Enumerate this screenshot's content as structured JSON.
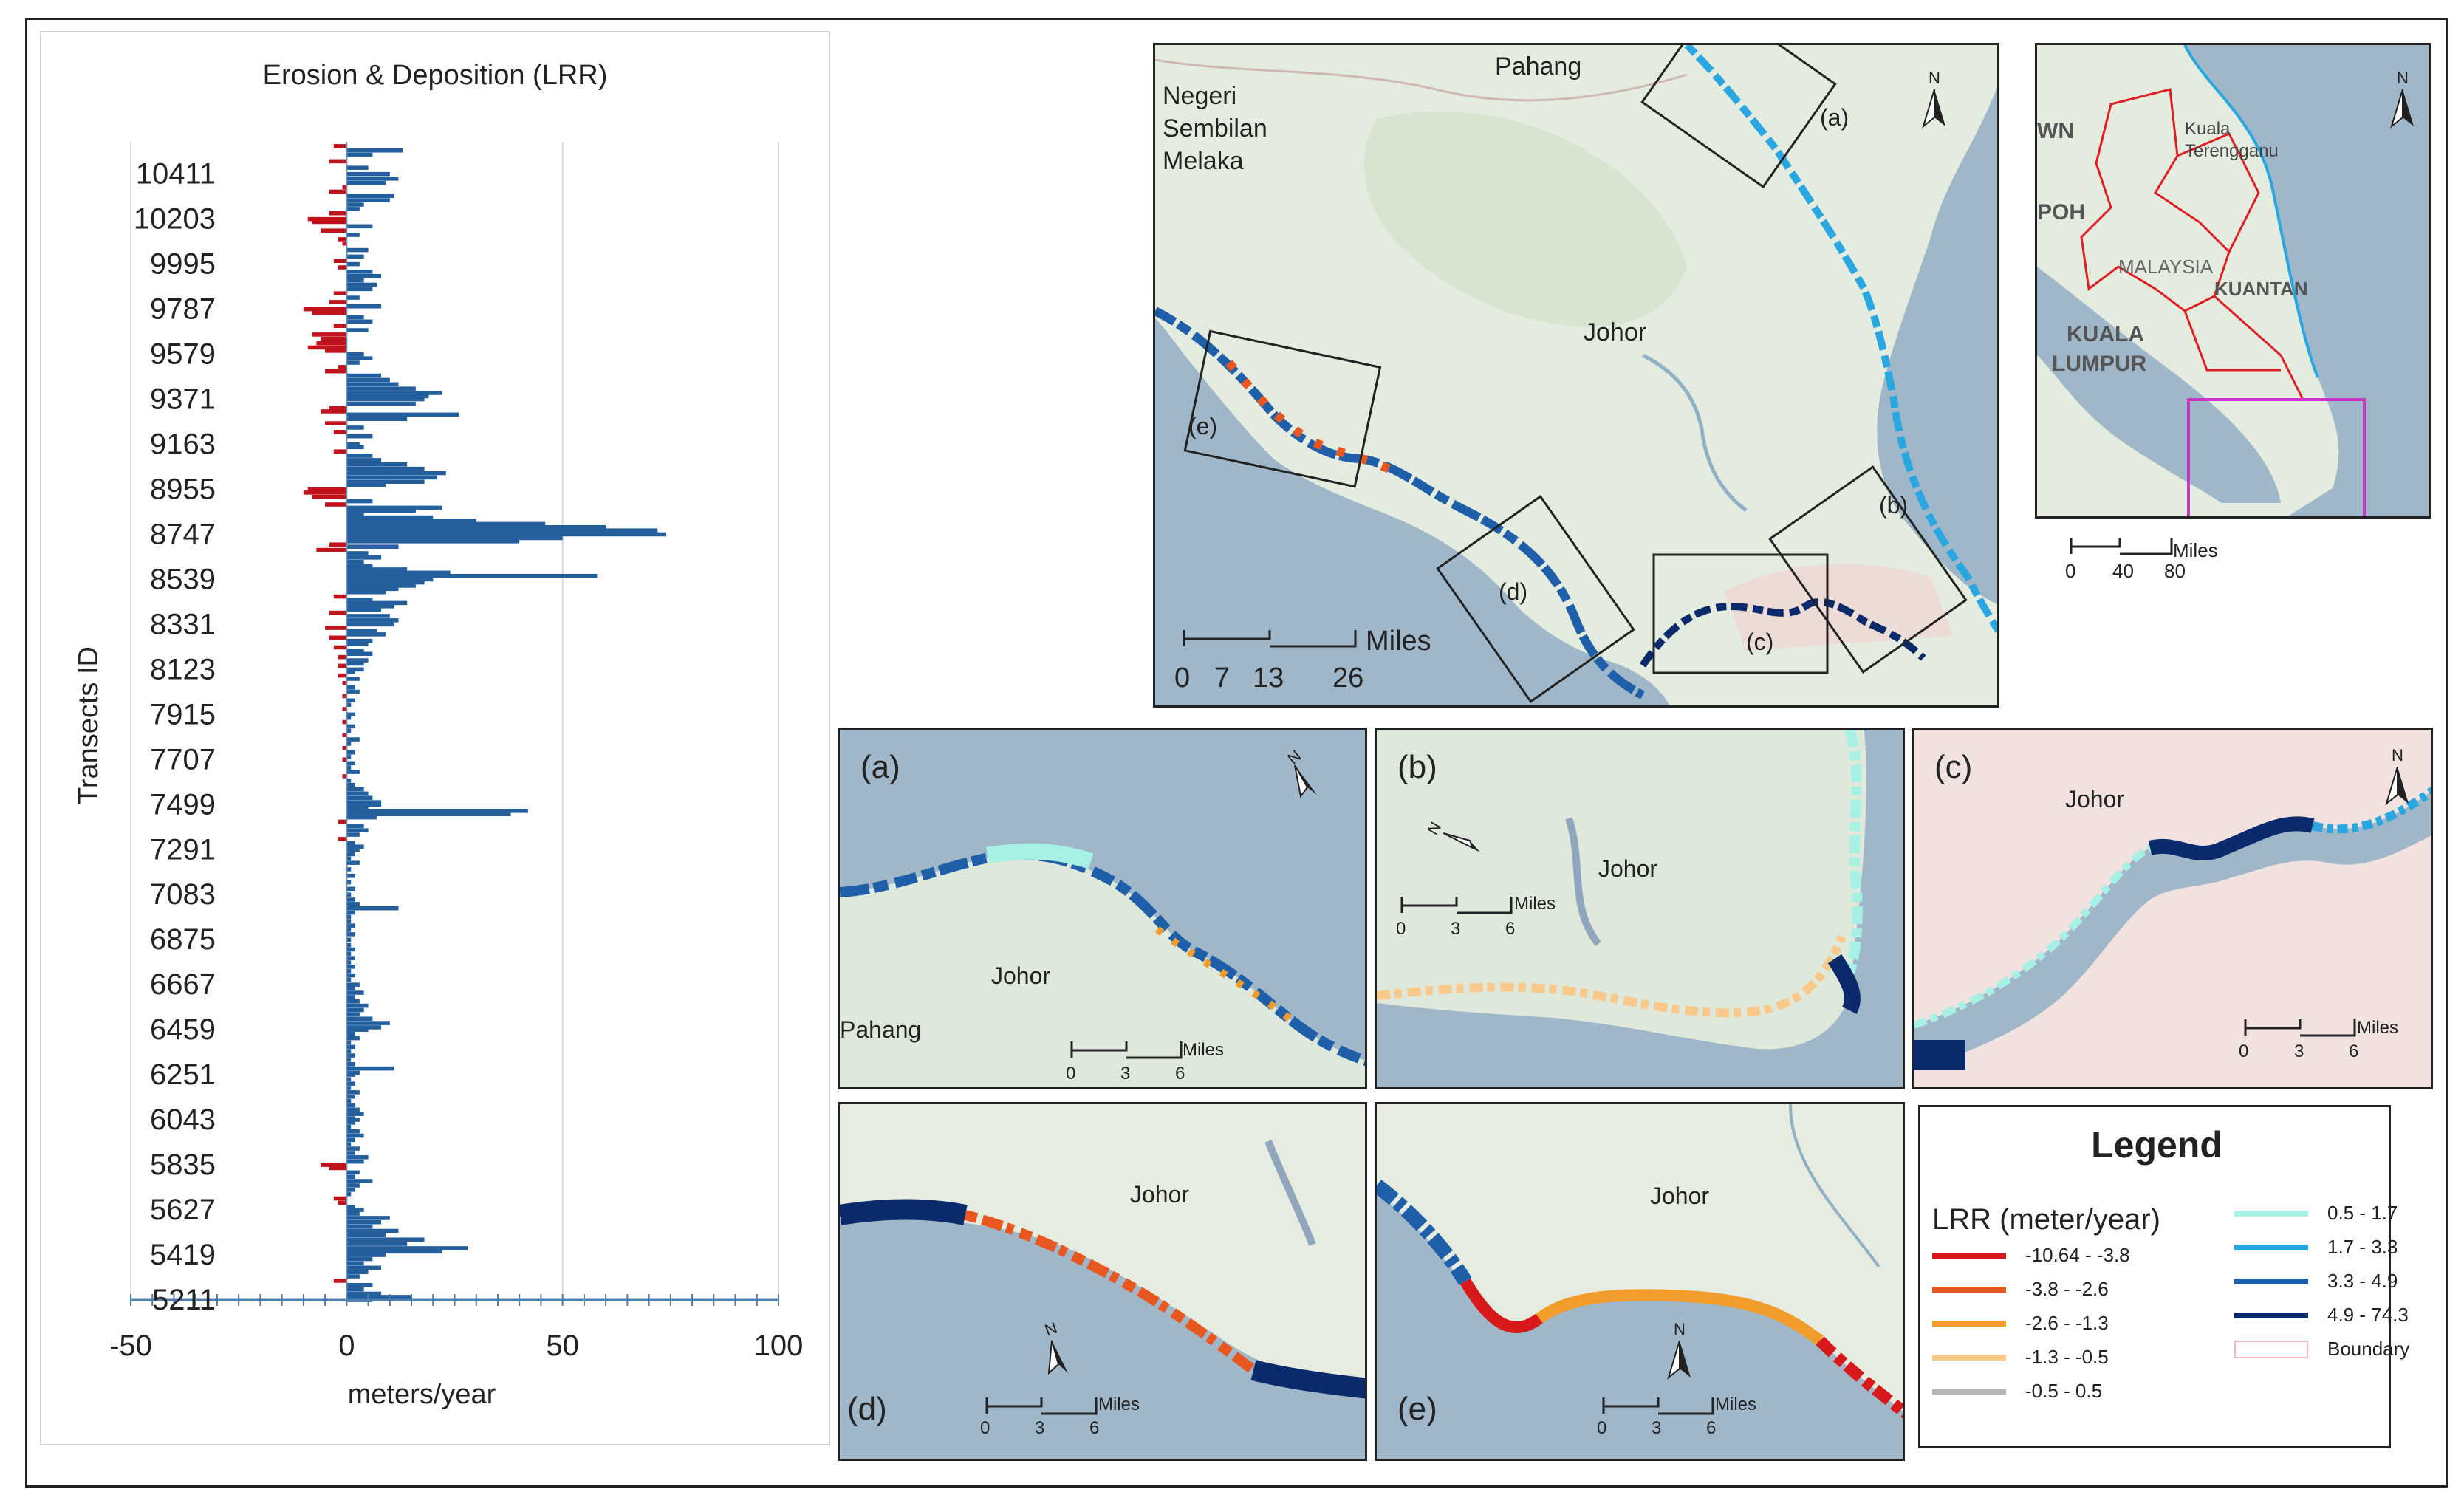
{
  "colors": {
    "erosion": "#c0131c",
    "deposition": "#245f9d",
    "sea": "#9fb7c8",
    "land": "#e3ecdf",
    "frame": "#222222",
    "boundary": "#f3b9bd"
  },
  "chart_data": {
    "type": "bar",
    "orientation": "horizontal",
    "title": "Erosion & Deposition (LRR)",
    "xlabel": "meters/year",
    "ylabel": "Transects ID",
    "xlim": [
      -50,
      100
    ],
    "x_ticks": [
      -50,
      0,
      50,
      100
    ],
    "y_ticks": [
      10411,
      10203,
      9995,
      9787,
      9579,
      9371,
      9163,
      8955,
      8747,
      8539,
      8331,
      8123,
      7915,
      7707,
      7499,
      7291,
      7083,
      6875,
      6667,
      6459,
      6251,
      6043,
      5835,
      5627,
      5419,
      5211
    ],
    "grid": "vertical",
    "legend": "none",
    "series_note": "red bars = negative LRR (erosion), blue bars = positive LRR (deposition)",
    "ymin": 5211,
    "ymax": 10560,
    "values": [
      [
        10540,
        -3
      ],
      [
        10520,
        13
      ],
      [
        10500,
        6
      ],
      [
        10470,
        -4
      ],
      [
        10440,
        5
      ],
      [
        10411,
        10
      ],
      [
        10390,
        12
      ],
      [
        10370,
        9
      ],
      [
        10350,
        -1
      ],
      [
        10330,
        -4
      ],
      [
        10310,
        11
      ],
      [
        10290,
        10
      ],
      [
        10270,
        4
      ],
      [
        10250,
        3
      ],
      [
        10230,
        -4
      ],
      [
        10203,
        -9
      ],
      [
        10190,
        -8
      ],
      [
        10170,
        6
      ],
      [
        10150,
        -6
      ],
      [
        10130,
        3
      ],
      [
        10110,
        -2
      ],
      [
        10090,
        -1
      ],
      [
        10060,
        5
      ],
      [
        10030,
        4
      ],
      [
        10010,
        -3
      ],
      [
        9995,
        3
      ],
      [
        9980,
        -2
      ],
      [
        9960,
        6
      ],
      [
        9940,
        8
      ],
      [
        9920,
        4
      ],
      [
        9900,
        7
      ],
      [
        9880,
        6
      ],
      [
        9860,
        -3
      ],
      [
        9840,
        3
      ],
      [
        9820,
        -4
      ],
      [
        9800,
        8
      ],
      [
        9787,
        -10
      ],
      [
        9770,
        -8
      ],
      [
        9750,
        4
      ],
      [
        9730,
        6
      ],
      [
        9710,
        -3
      ],
      [
        9690,
        5
      ],
      [
        9670,
        -8
      ],
      [
        9650,
        -6
      ],
      [
        9630,
        -7
      ],
      [
        9610,
        -9
      ],
      [
        9595,
        -5
      ],
      [
        9579,
        4
      ],
      [
        9560,
        6
      ],
      [
        9540,
        3
      ],
      [
        9520,
        -2
      ],
      [
        9500,
        -5
      ],
      [
        9480,
        8
      ],
      [
        9460,
        10
      ],
      [
        9440,
        12
      ],
      [
        9420,
        16
      ],
      [
        9400,
        22
      ],
      [
        9385,
        19
      ],
      [
        9371,
        18
      ],
      [
        9350,
        16
      ],
      [
        9330,
        -4
      ],
      [
        9315,
        -6
      ],
      [
        9300,
        26
      ],
      [
        9280,
        14
      ],
      [
        9260,
        -5
      ],
      [
        9240,
        4
      ],
      [
        9220,
        -3
      ],
      [
        9200,
        6
      ],
      [
        9163,
        3
      ],
      [
        9150,
        4
      ],
      [
        9130,
        -3
      ],
      [
        9110,
        6
      ],
      [
        9090,
        8
      ],
      [
        9070,
        14
      ],
      [
        9050,
        18
      ],
      [
        9030,
        23
      ],
      [
        9010,
        21
      ],
      [
        8990,
        18
      ],
      [
        8975,
        9
      ],
      [
        8955,
        -9
      ],
      [
        8940,
        -10
      ],
      [
        8920,
        -8
      ],
      [
        8900,
        6
      ],
      [
        8885,
        -5
      ],
      [
        8870,
        22
      ],
      [
        8855,
        16
      ],
      [
        8840,
        4
      ],
      [
        8825,
        20
      ],
      [
        8810,
        30
      ],
      [
        8795,
        46
      ],
      [
        8780,
        60
      ],
      [
        8765,
        72
      ],
      [
        8747,
        74
      ],
      [
        8730,
        50
      ],
      [
        8715,
        40
      ],
      [
        8700,
        -4
      ],
      [
        8690,
        12
      ],
      [
        8675,
        -7
      ],
      [
        8660,
        5
      ],
      [
        8640,
        8
      ],
      [
        8620,
        4
      ],
      [
        8600,
        6
      ],
      [
        8585,
        14
      ],
      [
        8570,
        24
      ],
      [
        8555,
        58
      ],
      [
        8539,
        20
      ],
      [
        8525,
        18
      ],
      [
        8510,
        16
      ],
      [
        8495,
        12
      ],
      [
        8480,
        9
      ],
      [
        8460,
        -3
      ],
      [
        8445,
        6
      ],
      [
        8430,
        14
      ],
      [
        8415,
        11
      ],
      [
        8400,
        8
      ],
      [
        8385,
        -4
      ],
      [
        8370,
        10
      ],
      [
        8350,
        12
      ],
      [
        8331,
        11
      ],
      [
        8315,
        -5
      ],
      [
        8300,
        7
      ],
      [
        8285,
        9
      ],
      [
        8270,
        -4
      ],
      [
        8255,
        6
      ],
      [
        8240,
        5
      ],
      [
        8225,
        -3
      ],
      [
        8210,
        4
      ],
      [
        8195,
        6
      ],
      [
        8180,
        -2
      ],
      [
        8165,
        5
      ],
      [
        8150,
        4
      ],
      [
        8140,
        -2
      ],
      [
        8123,
        4
      ],
      [
        8110,
        2
      ],
      [
        8095,
        -2
      ],
      [
        8080,
        3
      ],
      [
        8060,
        -1
      ],
      [
        8040,
        2
      ],
      [
        8020,
        3
      ],
      [
        8000,
        -1
      ],
      [
        7980,
        2
      ],
      [
        7960,
        1
      ],
      [
        7940,
        -1
      ],
      [
        7915,
        2
      ],
      [
        7900,
        1
      ],
      [
        7880,
        -1
      ],
      [
        7860,
        2
      ],
      [
        7840,
        1
      ],
      [
        7820,
        -1
      ],
      [
        7800,
        3
      ],
      [
        7780,
        1
      ],
      [
        7760,
        -1
      ],
      [
        7740,
        2
      ],
      [
        7720,
        1
      ],
      [
        7707,
        -1
      ],
      [
        7690,
        2
      ],
      [
        7670,
        1
      ],
      [
        7650,
        3
      ],
      [
        7630,
        -1
      ],
      [
        7610,
        1
      ],
      [
        7590,
        2
      ],
      [
        7570,
        4
      ],
      [
        7550,
        5
      ],
      [
        7530,
        6
      ],
      [
        7510,
        8
      ],
      [
        7499,
        8
      ],
      [
        7485,
        5
      ],
      [
        7470,
        42
      ],
      [
        7455,
        38
      ],
      [
        7440,
        7
      ],
      [
        7420,
        -2
      ],
      [
        7400,
        4
      ],
      [
        7380,
        5
      ],
      [
        7360,
        3
      ],
      [
        7340,
        -2
      ],
      [
        7320,
        2
      ],
      [
        7305,
        4
      ],
      [
        7291,
        3
      ],
      [
        7270,
        2
      ],
      [
        7250,
        1
      ],
      [
        7230,
        3
      ],
      [
        7200,
        1
      ],
      [
        7170,
        2
      ],
      [
        7140,
        1
      ],
      [
        7110,
        2
      ],
      [
        7083,
        1
      ],
      [
        7060,
        2
      ],
      [
        7040,
        3
      ],
      [
        7020,
        12
      ],
      [
        7000,
        2
      ],
      [
        6980,
        1
      ],
      [
        6960,
        1
      ],
      [
        6940,
        2
      ],
      [
        6920,
        1
      ],
      [
        6900,
        2
      ],
      [
        6875,
        1
      ],
      [
        6850,
        1
      ],
      [
        6830,
        2
      ],
      [
        6810,
        1
      ],
      [
        6790,
        2
      ],
      [
        6770,
        1
      ],
      [
        6750,
        2
      ],
      [
        6730,
        1
      ],
      [
        6710,
        2
      ],
      [
        6690,
        1
      ],
      [
        6667,
        3
      ],
      [
        6650,
        2
      ],
      [
        6630,
        4
      ],
      [
        6610,
        2
      ],
      [
        6590,
        3
      ],
      [
        6570,
        5
      ],
      [
        6550,
        4
      ],
      [
        6530,
        3
      ],
      [
        6510,
        6
      ],
      [
        6490,
        10
      ],
      [
        6470,
        8
      ],
      [
        6459,
        5
      ],
      [
        6440,
        2
      ],
      [
        6420,
        3
      ],
      [
        6400,
        1
      ],
      [
        6380,
        2
      ],
      [
        6360,
        1
      ],
      [
        6340,
        2
      ],
      [
        6320,
        1
      ],
      [
        6300,
        2
      ],
      [
        6280,
        11
      ],
      [
        6260,
        3
      ],
      [
        6251,
        2
      ],
      [
        6230,
        1
      ],
      [
        6210,
        2
      ],
      [
        6190,
        1
      ],
      [
        6170,
        3
      ],
      [
        6150,
        2
      ],
      [
        6130,
        1
      ],
      [
        6110,
        2
      ],
      [
        6090,
        3
      ],
      [
        6070,
        4
      ],
      [
        6050,
        2
      ],
      [
        6043,
        3
      ],
      [
        6030,
        2
      ],
      [
        6010,
        1
      ],
      [
        5990,
        3
      ],
      [
        5970,
        4
      ],
      [
        5950,
        2
      ],
      [
        5930,
        1
      ],
      [
        5910,
        3
      ],
      [
        5890,
        2
      ],
      [
        5870,
        5
      ],
      [
        5850,
        4
      ],
      [
        5835,
        -6
      ],
      [
        5820,
        -4
      ],
      [
        5800,
        3
      ],
      [
        5780,
        2
      ],
      [
        5760,
        6
      ],
      [
        5740,
        3
      ],
      [
        5720,
        2
      ],
      [
        5700,
        1
      ],
      [
        5680,
        -3
      ],
      [
        5660,
        -2
      ],
      [
        5640,
        2
      ],
      [
        5627,
        4
      ],
      [
        5610,
        3
      ],
      [
        5590,
        10
      ],
      [
        5570,
        8
      ],
      [
        5550,
        6
      ],
      [
        5530,
        12
      ],
      [
        5510,
        9
      ],
      [
        5490,
        18
      ],
      [
        5470,
        14
      ],
      [
        5450,
        28
      ],
      [
        5435,
        22
      ],
      [
        5419,
        9
      ],
      [
        5400,
        6
      ],
      [
        5380,
        4
      ],
      [
        5360,
        8
      ],
      [
        5340,
        5
      ],
      [
        5320,
        3
      ],
      [
        5300,
        -3
      ],
      [
        5280,
        6
      ],
      [
        5260,
        4
      ],
      [
        5240,
        8
      ],
      [
        5225,
        15
      ],
      [
        5211,
        6
      ]
    ]
  },
  "main_map": {
    "labels": [
      "Pahang",
      "Negeri",
      "Sembilan",
      "Melaka",
      "Johor"
    ],
    "panel_markers": [
      "(a)",
      "(b)",
      "(c)",
      "(d)",
      "(e)"
    ],
    "scale_label": "Miles",
    "scale_ticks": [
      "0",
      "7",
      "13",
      "26"
    ]
  },
  "locator_map": {
    "labels": [
      "WN",
      "Kuala",
      "Terengganu",
      "POH",
      "MALAYSIA",
      "KUANTAN",
      "KUALA",
      "LUMPUR"
    ],
    "scale_label": "Miles",
    "scale_ticks": [
      "0",
      "40",
      "80"
    ]
  },
  "insets": {
    "a": {
      "letter": "(a)",
      "labels": [
        "Johor",
        "Pahang"
      ],
      "scale_label": "Miles",
      "scale_ticks": [
        "0",
        "3",
        "6"
      ]
    },
    "b": {
      "letter": "(b)",
      "labels": [
        "Johor"
      ],
      "scale_label": "Miles",
      "scale_ticks": [
        "0",
        "3",
        "6"
      ]
    },
    "c": {
      "letter": "(c)",
      "labels": [
        "Johor"
      ],
      "scale_label": "Miles",
      "scale_ticks": [
        "0",
        "3",
        "6"
      ]
    },
    "d": {
      "letter": "(d)",
      "labels": [
        "Johor"
      ],
      "scale_label": "Miles",
      "scale_ticks": [
        "0",
        "3",
        "6"
      ]
    },
    "e": {
      "letter": "(e)",
      "labels": [
        "Johor"
      ],
      "scale_label": "Miles",
      "scale_ticks": [
        "0",
        "3",
        "6"
      ]
    }
  },
  "north_arrow_label": "N",
  "legend": {
    "title": "Legend",
    "subtitle": "LRR (meter/year)",
    "items_left": [
      {
        "label": "-10.64 - -3.8",
        "color": "#d7191c"
      },
      {
        "label": "-3.8 - -2.6",
        "color": "#e8571f"
      },
      {
        "label": "-2.6 - -1.3",
        "color": "#f29d2b"
      },
      {
        "label": "-1.3 - -0.5",
        "color": "#f8c98a"
      },
      {
        "label": "-0.5 - 0.5",
        "color": "#b5b5b5"
      }
    ],
    "items_right": [
      {
        "label": "0.5 - 1.7",
        "color": "#a6f0e4"
      },
      {
        "label": "1.7 - 3.3",
        "color": "#2aa7e0"
      },
      {
        "label": "3.3 - 4.9",
        "color": "#1f5ea8"
      },
      {
        "label": "4.9 - 74.3",
        "color": "#0b2a6b"
      }
    ],
    "boundary_label": "Boundary"
  }
}
